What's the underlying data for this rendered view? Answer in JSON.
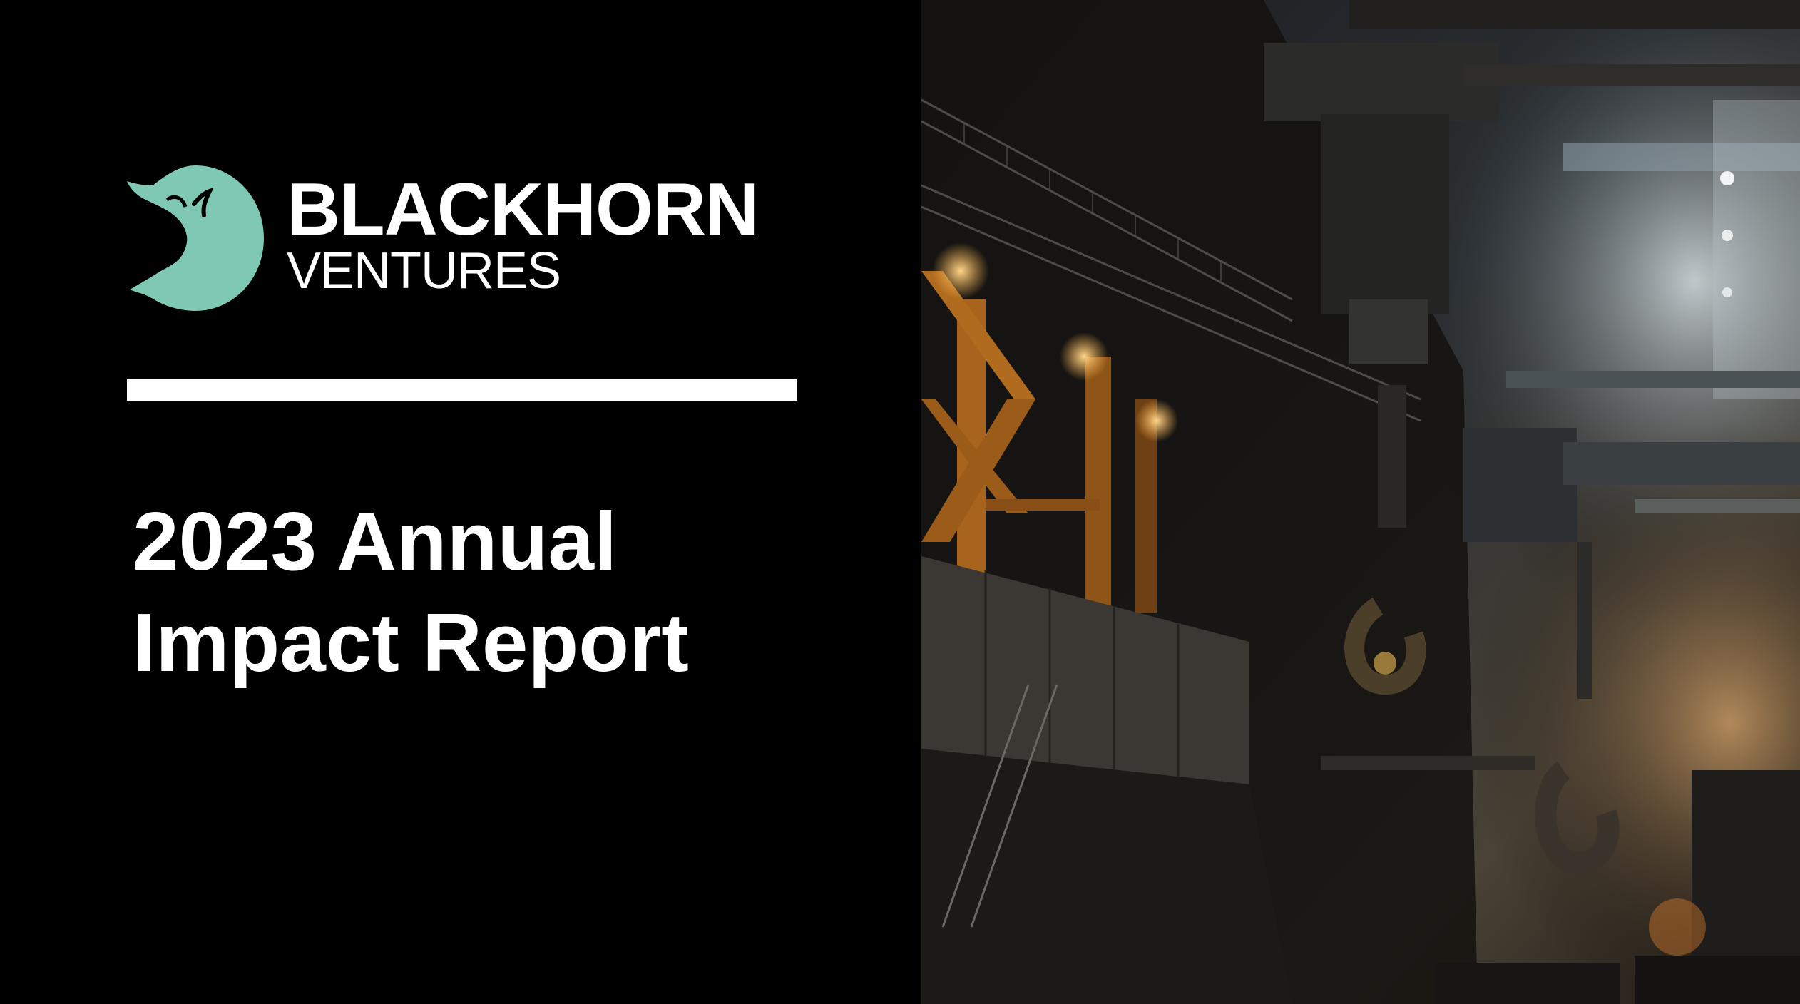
{
  "brand": {
    "line1": "BLACKHORN",
    "line2": "VENTURES",
    "logo_color": "#7fc9b4"
  },
  "report": {
    "title_line1": "2023 Annual",
    "title_line2": "Impact Report"
  },
  "photo": {
    "icon": "industrial-factory-photo"
  }
}
